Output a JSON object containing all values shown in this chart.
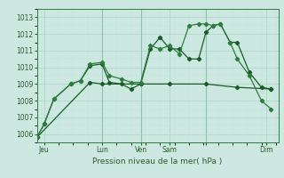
{
  "xlabel": "Pression niveau de la mer( hPa )",
  "bg_color": "#cce8e0",
  "grid_color": "#aad4c8",
  "grid_color_minor": "#c4e4dc",
  "line_color_dark": "#1a5c28",
  "line_color_mid": "#2e7d3e",
  "vline_color": "#88c4b0",
  "spine_color": "#2e7d3e",
  "tick_color": "#2e5c30",
  "xlim": [
    0,
    100
  ],
  "ylim": [
    1005.5,
    1013.5
  ],
  "yticks": [
    1006,
    1007,
    1008,
    1009,
    1010,
    1011,
    1012,
    1013
  ],
  "xtick_positions": [
    3,
    27,
    43,
    55,
    70,
    95
  ],
  "xtick_labels": [
    "Jeu",
    "Lun",
    "Ven",
    "Sam",
    "",
    "Dim"
  ],
  "vlines": [
    27,
    43,
    70
  ],
  "series1_x": [
    0,
    3,
    7,
    14,
    18,
    22,
    27,
    30,
    35,
    39,
    43,
    47,
    51,
    55,
    59,
    63,
    67,
    70,
    73,
    76,
    80,
    83,
    88,
    93,
    97
  ],
  "series1_y": [
    1005.8,
    1006.6,
    1008.1,
    1009.0,
    1009.2,
    1010.1,
    1010.2,
    1009.1,
    1009.0,
    1008.7,
    1009.0,
    1011.1,
    1011.8,
    1011.1,
    1011.1,
    1010.5,
    1010.5,
    1012.1,
    1012.5,
    1012.6,
    1011.5,
    1011.5,
    1009.7,
    1008.8,
    1008.7
  ],
  "series2_x": [
    0,
    3,
    7,
    14,
    18,
    22,
    27,
    30,
    35,
    39,
    43,
    47,
    51,
    55,
    59,
    63,
    67,
    70,
    73,
    76,
    80,
    83,
    88,
    93,
    97
  ],
  "series2_y": [
    1005.8,
    1006.6,
    1008.1,
    1009.0,
    1009.2,
    1010.2,
    1010.3,
    1009.5,
    1009.3,
    1009.1,
    1009.1,
    1011.3,
    1011.1,
    1011.3,
    1010.8,
    1012.5,
    1012.6,
    1012.6,
    1012.5,
    1012.6,
    1011.5,
    1010.5,
    1009.5,
    1008.0,
    1007.5
  ],
  "series3_x": [
    0,
    22,
    27,
    43,
    55,
    70,
    83,
    97
  ],
  "series3_y": [
    1005.8,
    1009.1,
    1009.0,
    1009.0,
    1009.0,
    1009.0,
    1008.8,
    1008.7
  ]
}
